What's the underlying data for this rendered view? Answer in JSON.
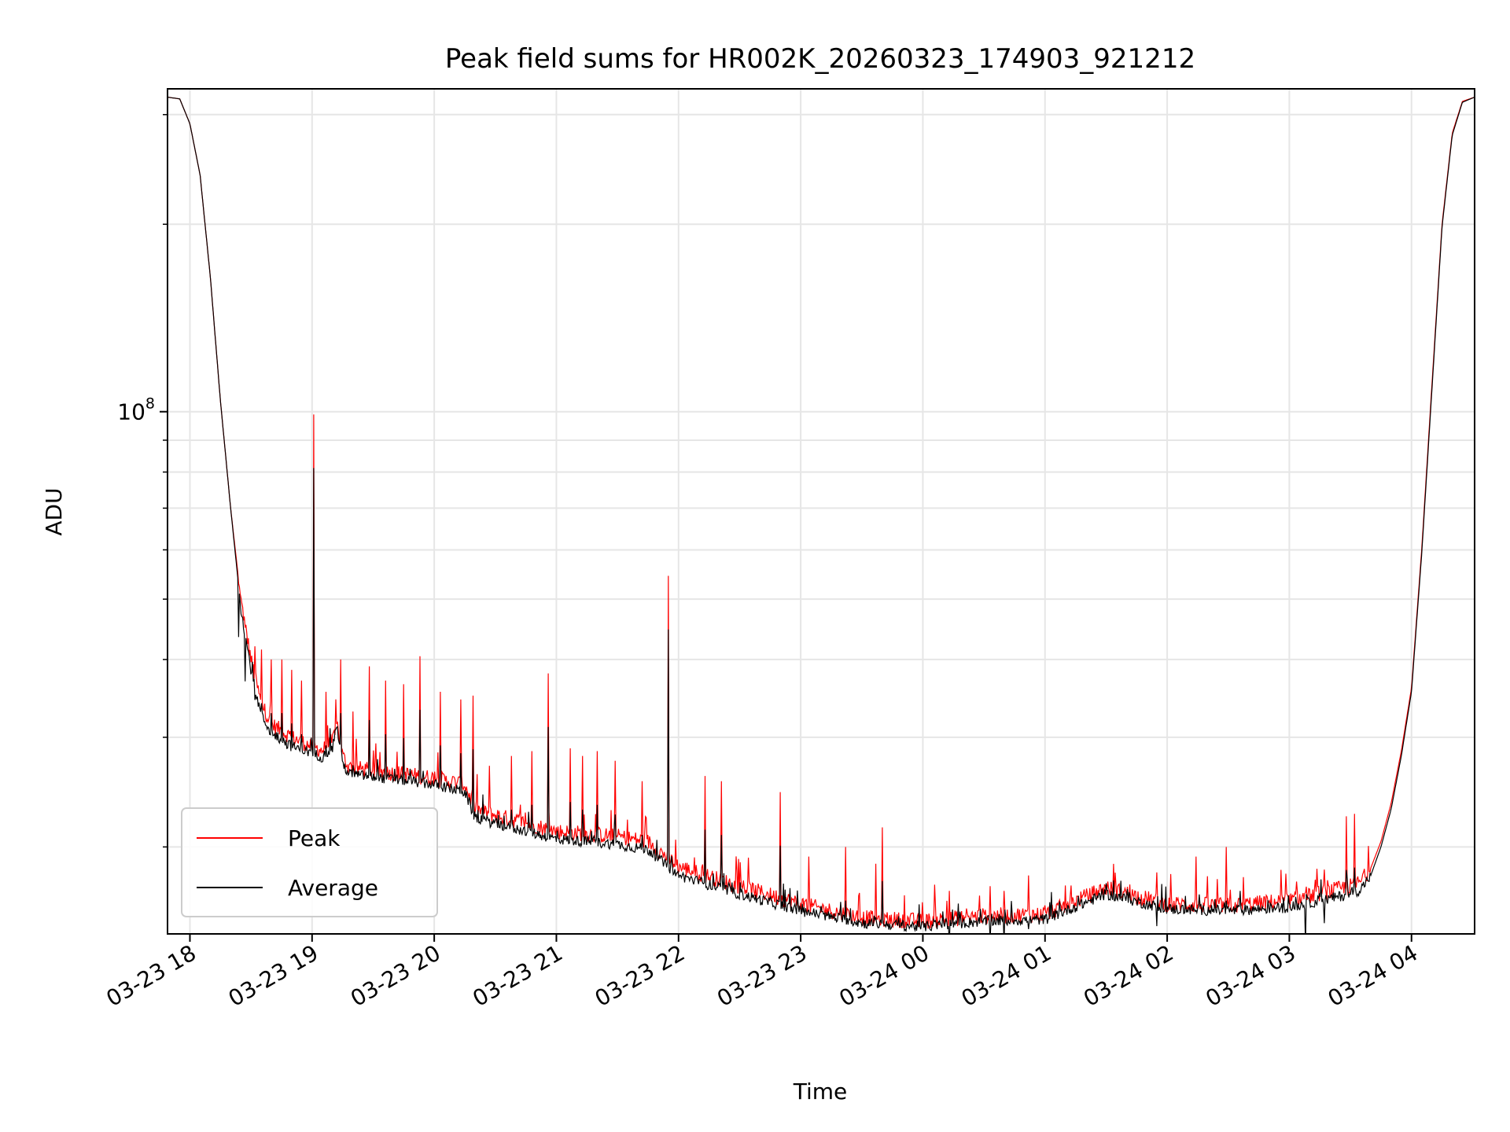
{
  "chart_data": {
    "type": "line",
    "title": "Peak field sums for HR002K_20260323_174903_921212",
    "xlabel": "Time",
    "ylabel": "ADU",
    "y_scale": "log",
    "ylim": [
      14500000,
      330000000
    ],
    "xlim": [
      "2026-03-23 17:49",
      "2026-03-24 04:31"
    ],
    "x_ticks": [
      "2026-03-23 18:00",
      "2026-03-23 19:00",
      "2026-03-23 20:00",
      "2026-03-23 21:00",
      "2026-03-23 22:00",
      "2026-03-23 23:00",
      "2026-03-24 00:00",
      "2026-03-24 01:00",
      "2026-03-24 02:00",
      "2026-03-24 03:00",
      "2026-03-24 04:00"
    ],
    "x_tick_labels": [
      "03-23 18",
      "03-23 19",
      "03-23 20",
      "03-23 21",
      "03-23 22",
      "03-23 23",
      "03-24 00",
      "03-24 01",
      "03-24 02",
      "03-24 03",
      "03-24 04"
    ],
    "y_major_ticks": [
      100000000
    ],
    "y_major_labels": [
      {
        "base": "10",
        "exp": "8"
      }
    ],
    "y_minor_ticks": [
      20000000,
      30000000,
      40000000,
      50000000,
      60000000,
      70000000,
      80000000,
      90000000,
      200000000,
      300000000
    ],
    "grid": true,
    "legend_position": "lower-left",
    "x": [
      "2026-03-23 17:49",
      "2026-03-23 17:55",
      "2026-03-23 18:00",
      "2026-03-23 18:05",
      "2026-03-23 18:10",
      "2026-03-23 18:15",
      "2026-03-23 18:20",
      "2026-03-23 18:25",
      "2026-03-23 18:30",
      "2026-03-23 18:35",
      "2026-03-23 18:40",
      "2026-03-23 18:50",
      "2026-03-23 19:00",
      "2026-03-23 19:05",
      "2026-03-23 19:10",
      "2026-03-23 19:12",
      "2026-03-23 19:15",
      "2026-03-23 19:18",
      "2026-03-23 19:30",
      "2026-03-23 19:45",
      "2026-03-23 20:00",
      "2026-03-23 20:15",
      "2026-03-23 20:20",
      "2026-03-23 20:30",
      "2026-03-23 21:00",
      "2026-03-23 21:30",
      "2026-03-23 21:45",
      "2026-03-23 22:00",
      "2026-03-23 22:30",
      "2026-03-23 23:00",
      "2026-03-23 23:30",
      "2026-03-24 00:00",
      "2026-03-24 00:30",
      "2026-03-24 01:00",
      "2026-03-24 01:30",
      "2026-03-24 02:00",
      "2026-03-24 02:30",
      "2026-03-24 03:00",
      "2026-03-24 03:30",
      "2026-03-24 03:35",
      "2026-03-24 03:40",
      "2026-03-24 03:45",
      "2026-03-24 03:50",
      "2026-03-24 03:55",
      "2026-03-24 04:00",
      "2026-03-24 04:05",
      "2026-03-24 04:10",
      "2026-03-24 04:15",
      "2026-03-24 04:20",
      "2026-03-24 04:25",
      "2026-03-24 04:31"
    ],
    "series": [
      {
        "name": "Peak",
        "color": "#ff0000",
        "values": [
          320000000,
          318000000,
          290000000,
          240000000,
          165000000,
          104000000,
          70000000,
          50000000,
          40000000,
          34000000,
          31500000,
          30000000,
          29000000,
          28600000,
          29500000,
          32000000,
          28000000,
          26900000,
          26500000,
          26200000,
          25800000,
          25200000,
          23000000,
          22500000,
          21200000,
          20800000,
          20400000,
          18600000,
          17300000,
          16200000,
          15400000,
          15200000,
          15500000,
          15600000,
          17200000,
          16200000,
          16100000,
          16400000,
          17300000,
          17600000,
          18500000,
          20400000,
          23500000,
          28500000,
          36000000,
          60000000,
          110000000,
          200000000,
          280000000,
          315000000,
          320000000
        ]
      },
      {
        "name": "Average",
        "color": "#000000",
        "values": [
          320000000,
          318000000,
          290000000,
          240000000,
          165000000,
          104000000,
          70000000,
          48500000,
          38500000,
          32500000,
          30500000,
          29000000,
          28300000,
          27900000,
          28800000,
          31500000,
          27300000,
          26200000,
          25900000,
          25600000,
          25200000,
          24500000,
          22300000,
          21800000,
          20600000,
          20200000,
          19800000,
          18000000,
          16800000,
          15800000,
          15100000,
          14900000,
          15200000,
          15300000,
          16800000,
          15900000,
          15800000,
          16000000,
          16800000,
          17100000,
          18000000,
          20000000,
          23000000,
          28000000,
          35500000,
          59000000,
          108000000,
          198000000,
          278000000,
          314000000,
          320000000
        ]
      }
    ],
    "peak_spikes": [
      {
        "t": "2026-03-23 18:24",
        "v": 53000000
      },
      {
        "t": "2026-03-23 18:27",
        "v": 45000000
      },
      {
        "t": "2026-03-23 18:32",
        "v": 42000000
      },
      {
        "t": "2026-03-23 18:35",
        "v": 41500000
      },
      {
        "t": "2026-03-23 18:40",
        "v": 40000000
      },
      {
        "t": "2026-03-23 18:45",
        "v": 40000000
      },
      {
        "t": "2026-03-23 18:50",
        "v": 38500000
      },
      {
        "t": "2026-03-23 18:55",
        "v": 37000000
      },
      {
        "t": "2026-03-23 19:01",
        "v": 99000000
      },
      {
        "t": "2026-03-23 19:07",
        "v": 35500000
      },
      {
        "t": "2026-03-23 19:14",
        "v": 40000000
      },
      {
        "t": "2026-03-23 19:20",
        "v": 33000000
      },
      {
        "t": "2026-03-23 19:28",
        "v": 39000000
      },
      {
        "t": "2026-03-23 19:36",
        "v": 37000000
      },
      {
        "t": "2026-03-23 19:45",
        "v": 36500000
      },
      {
        "t": "2026-03-23 19:53",
        "v": 40500000
      },
      {
        "t": "2026-03-23 20:03",
        "v": 35500000
      },
      {
        "t": "2026-03-23 20:13",
        "v": 34500000
      },
      {
        "t": "2026-03-23 20:19",
        "v": 35000000
      },
      {
        "t": "2026-03-23 20:27",
        "v": 27000000
      },
      {
        "t": "2026-03-23 20:38",
        "v": 28000000
      },
      {
        "t": "2026-03-23 20:48",
        "v": 28500000
      },
      {
        "t": "2026-03-23 20:56",
        "v": 38000000
      },
      {
        "t": "2026-03-23 21:07",
        "v": 28800000
      },
      {
        "t": "2026-03-23 21:13",
        "v": 28000000
      },
      {
        "t": "2026-03-23 21:20",
        "v": 28500000
      },
      {
        "t": "2026-03-23 21:29",
        "v": 27500000
      },
      {
        "t": "2026-03-23 21:42",
        "v": 25500000
      },
      {
        "t": "2026-03-23 21:55",
        "v": 54500000
      },
      {
        "t": "2026-03-23 22:13",
        "v": 26000000
      },
      {
        "t": "2026-03-23 22:21",
        "v": 25500000
      },
      {
        "t": "2026-03-23 22:50",
        "v": 24500000
      },
      {
        "t": "2026-03-23 23:04",
        "v": 19300000
      },
      {
        "t": "2026-03-23 23:22",
        "v": 20000000
      },
      {
        "t": "2026-03-23 23:37",
        "v": 18800000
      },
      {
        "t": "2026-03-23 23:40",
        "v": 21500000
      },
      {
        "t": "2026-03-24 00:13",
        "v": 17000000
      },
      {
        "t": "2026-03-24 00:33",
        "v": 17300000
      },
      {
        "t": "2026-03-24 00:40",
        "v": 17000000
      },
      {
        "t": "2026-03-24 00:52",
        "v": 18000000
      },
      {
        "t": "2026-03-24 01:55",
        "v": 18200000
      },
      {
        "t": "2026-03-24 02:14",
        "v": 19300000
      },
      {
        "t": "2026-03-24 02:29",
        "v": 20000000
      },
      {
        "t": "2026-03-24 03:08",
        "v": 16900000
      },
      {
        "t": "2026-03-24 03:17",
        "v": 18400000
      },
      {
        "t": "2026-03-24 03:28",
        "v": 22400000
      },
      {
        "t": "2026-03-24 03:32",
        "v": 22600000
      }
    ]
  }
}
